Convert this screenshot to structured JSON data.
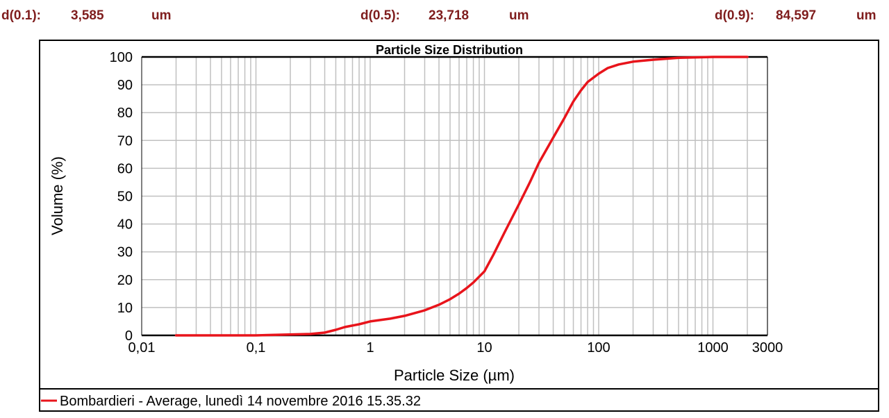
{
  "stats": [
    {
      "label": "d(0.1):",
      "value": "3,585",
      "unit": "um"
    },
    {
      "label": "d(0.5):",
      "value": "23,718",
      "unit": "um"
    },
    {
      "label": "d(0.9):",
      "value": "84,597",
      "unit": "um"
    }
  ],
  "colors": {
    "stat_text": "#7f1d1d",
    "series": "#e8141b",
    "grid": "#c0c0c0"
  },
  "chart_data": {
    "type": "line",
    "title": "Particle Size Distribution",
    "xlabel": "Particle Size (µm)",
    "ylabel": "Volume (%)",
    "x_scale": "log",
    "xlim": [
      0.01,
      3000
    ],
    "ylim": [
      0,
      100
    ],
    "x_ticks": [
      0.01,
      0.1,
      1,
      10,
      100,
      1000,
      3000
    ],
    "x_tick_labels": [
      "0,01",
      "0,1",
      "1",
      "10",
      "100",
      "1000",
      "3000"
    ],
    "y_ticks": [
      0,
      10,
      20,
      30,
      40,
      50,
      60,
      70,
      80,
      90,
      100
    ],
    "y_tick_labels": [
      "0",
      "10",
      "20",
      "30",
      "40",
      "50",
      "60",
      "70",
      "80",
      "90",
      "100"
    ],
    "grid": true,
    "legend_position": "bottom",
    "series": [
      {
        "name": "Bombardieri - Average, lunedì 14 novembre 2016 15.35.32",
        "x": [
          0.02,
          0.1,
          0.3,
          0.4,
          0.5,
          0.6,
          0.8,
          1,
          1.5,
          2,
          3,
          4,
          5,
          6,
          7,
          8,
          10,
          12,
          15,
          20,
          25,
          30,
          40,
          50,
          60,
          70,
          80,
          100,
          120,
          150,
          200,
          300,
          500,
          1000,
          2000
        ],
        "y": [
          0,
          0,
          0.5,
          1,
          2,
          3,
          4,
          5,
          6,
          7,
          9,
          11,
          13,
          15,
          17,
          19,
          23,
          29,
          37,
          47,
          55,
          62,
          71,
          78,
          84,
          88,
          91,
          94,
          96,
          97.3,
          98.3,
          99,
          99.7,
          100,
          100
        ]
      }
    ]
  }
}
